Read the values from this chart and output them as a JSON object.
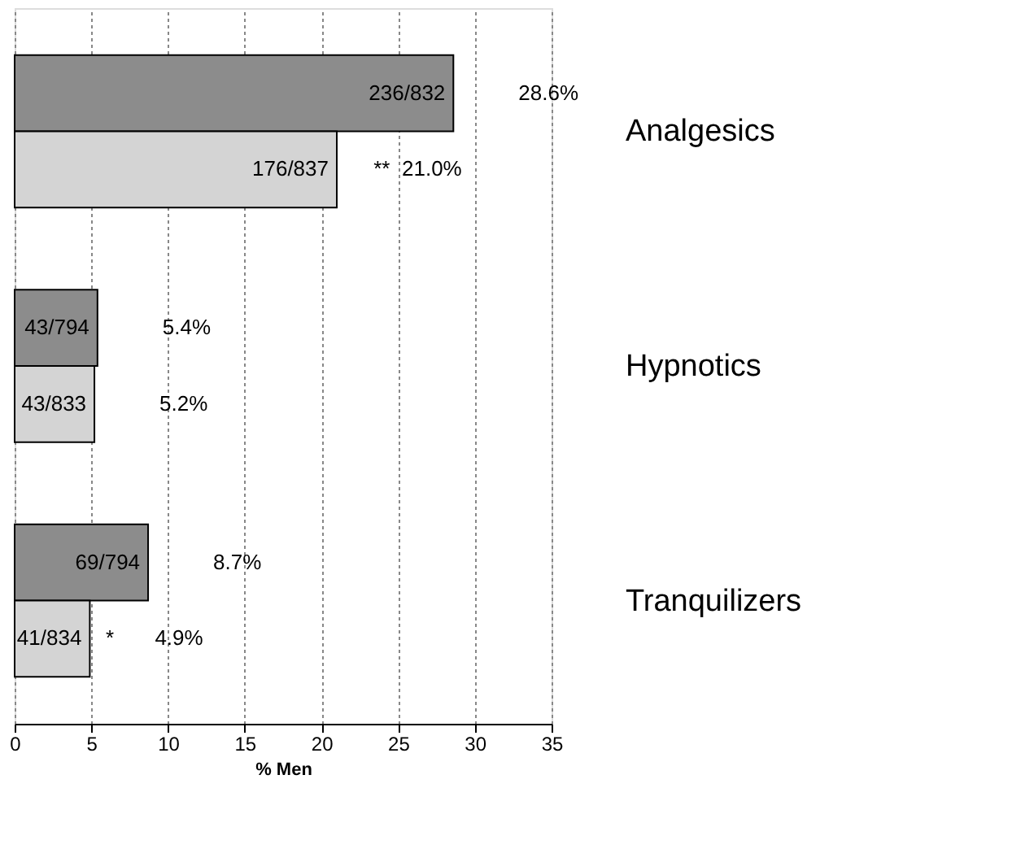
{
  "chart_data": {
    "type": "bar",
    "orientation": "horizontal",
    "categories": [
      "Analgesics",
      "Hypnotics",
      "Tranquilizers"
    ],
    "series": [
      {
        "color": "#8c8c8c",
        "values": [
          28.6,
          5.4,
          8.7
        ],
        "value_labels": [
          "28.6%",
          "5.4%",
          "8.7%"
        ]
      },
      {
        "color": "#d4d4d4",
        "values": [
          21.0,
          5.2,
          4.9
        ],
        "value_labels": [
          "21.0%",
          "5.2%",
          "4.9%"
        ]
      }
    ],
    "annotations": [
      {
        "text": "236/832",
        "x": 28.6,
        "y": "Analgesics"
      },
      {
        "text": "176/837",
        "x": 21.0,
        "y": "Analgesics"
      },
      {
        "text": "**",
        "x": 25.0,
        "y": "Analgesics"
      },
      {
        "text": "43/794",
        "x": 5.4,
        "y": "Hypnotics"
      },
      {
        "text": "43/833",
        "x": 5.2,
        "y": "Hypnotics"
      },
      {
        "text": "69/794",
        "x": 8.7,
        "y": "Tranquilizers"
      },
      {
        "text": "41/834",
        "x": 4.9,
        "y": "Tranquilizers"
      },
      {
        "text": "*",
        "x": 7.0,
        "y": "Tranquilizers"
      }
    ],
    "xlabel": "% Men",
    "xlim": [
      0,
      35
    ],
    "xticks": [
      0,
      5,
      10,
      15,
      20,
      25,
      30,
      35
    ],
    "grid": "x",
    "legend": false
  }
}
